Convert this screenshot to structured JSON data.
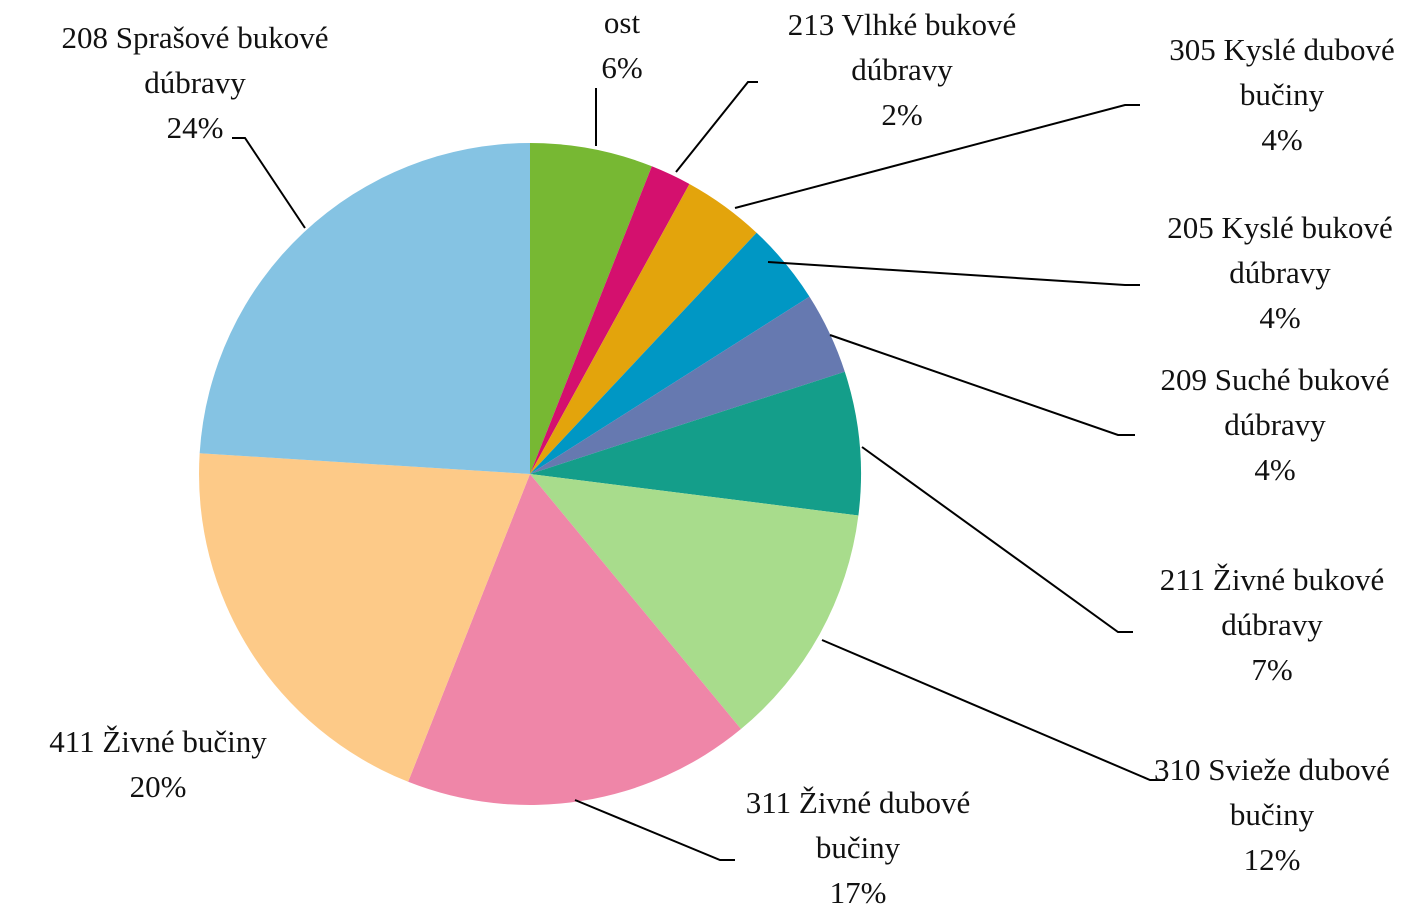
{
  "chart_data": {
    "type": "pie",
    "categories": [
      "ost",
      "213 Vlhké bukové dúbravy",
      "305 Kyslé dubové bučiny",
      "205 Kyslé bukové dúbravy",
      "209 Suché bukové dúbravy",
      "211 Živné bukové dúbravy",
      "310 Svieže dubové bučiny",
      "311 Živné dubové bučiny",
      "411 Živné bučiny",
      "208 Sprašové bukové dúbravy"
    ],
    "values": [
      6,
      2,
      4,
      4,
      4,
      7,
      12,
      17,
      20,
      24
    ],
    "value_labels": [
      "6%",
      "2%",
      "4%",
      "4%",
      "4%",
      "7%",
      "12%",
      "17%",
      "20%",
      "24%"
    ],
    "colors": [
      "#77b833",
      "#d4106e",
      "#e3a40c",
      "#0097c4",
      "#6679b0",
      "#149e8a",
      "#a8dc8c",
      "#ef86a8",
      "#fdca88",
      "#85c3e3"
    ]
  }
}
